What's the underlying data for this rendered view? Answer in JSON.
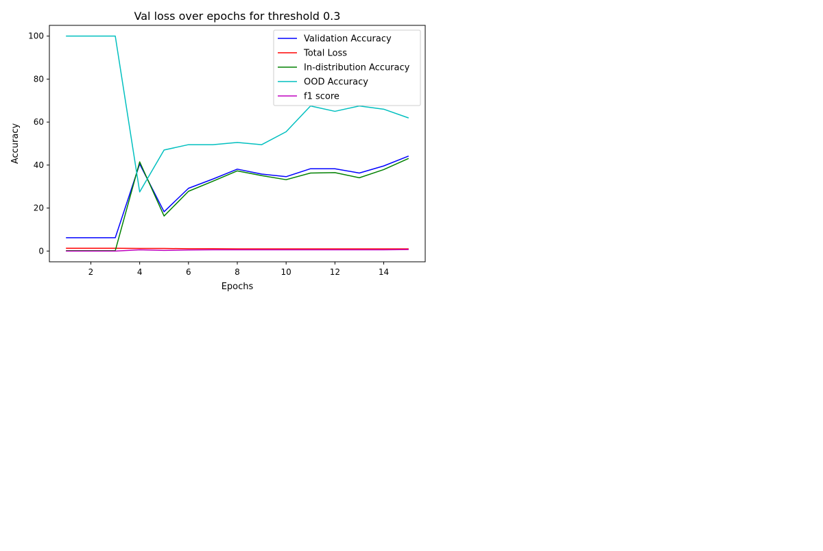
{
  "chart_data": {
    "type": "line",
    "title": "Val loss over epochs for threshold 0.3",
    "xlabel": "Epochs",
    "ylabel": "Accuracy",
    "xlim": [
      0.3,
      15.7
    ],
    "ylim": [
      -5,
      105
    ],
    "x": [
      1,
      2,
      3,
      4,
      5,
      6,
      7,
      8,
      9,
      10,
      11,
      12,
      13,
      14,
      15
    ],
    "xticks": [
      2,
      4,
      6,
      8,
      10,
      12,
      14
    ],
    "yticks": [
      0,
      20,
      40,
      60,
      80,
      100
    ],
    "grid": false,
    "legend_position": "top-right",
    "series": [
      {
        "name": "Validation Accuracy",
        "color": "#0000ff",
        "values": [
          6.2,
          6.2,
          6.2,
          40.5,
          18.3,
          29.2,
          33.5,
          38.1,
          35.8,
          34.6,
          38.3,
          38.3,
          36.3,
          39.6,
          44.1
        ]
      },
      {
        "name": "Total Loss",
        "color": "#ff0000",
        "values": [
          1.3,
          1.3,
          1.3,
          1.2,
          1.2,
          1.1,
          1.1,
          1.0,
          1.0,
          1.0,
          1.0,
          1.0,
          1.0,
          1.0,
          1.0
        ]
      },
      {
        "name": "In-distribution Accuracy",
        "color": "#008000",
        "values": [
          0.2,
          0.2,
          0.2,
          41.5,
          16.3,
          27.8,
          32.5,
          37.3,
          35.1,
          33.2,
          36.3,
          36.5,
          34.1,
          37.9,
          43.0
        ]
      },
      {
        "name": "OOD Accuracy",
        "color": "#00bfbf",
        "values": [
          100,
          100,
          100,
          27.5,
          47.0,
          49.5,
          49.5,
          50.5,
          49.5,
          55.5,
          67.5,
          65.0,
          67.5,
          66.0,
          62.0
        ]
      },
      {
        "name": "f1 score",
        "color": "#bf00bf",
        "values": [
          0.0,
          0.0,
          0.0,
          0.6,
          0.3,
          0.5,
          0.6,
          0.6,
          0.6,
          0.6,
          0.6,
          0.6,
          0.6,
          0.6,
          0.7
        ]
      }
    ]
  }
}
